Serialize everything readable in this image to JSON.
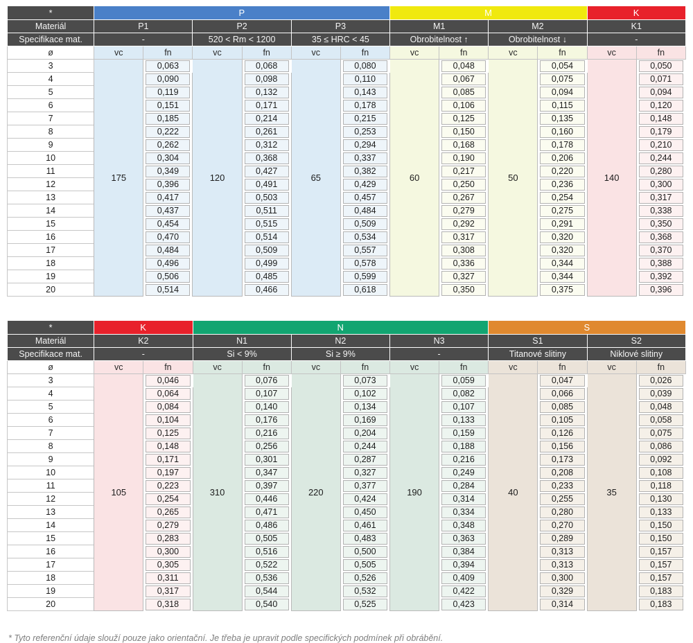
{
  "page": {
    "footnote": "* Tyto referenční údaje slouží pouze jako orientační. Je třeba je upravit podle specifických podmínek při obrábění."
  },
  "labels": {
    "corner": "*",
    "material_row": "Materiál",
    "spec_row": "Specifikace mat.",
    "diameter_symbol": "ø",
    "vc": "vc",
    "fn": "fn"
  },
  "diameters": [
    "3",
    "4",
    "5",
    "6",
    "7",
    "8",
    "9",
    "10",
    "11",
    "12",
    "13",
    "14",
    "15",
    "16",
    "17",
    "18",
    "19",
    "20"
  ],
  "tables": [
    {
      "groups": [
        {
          "label": "P",
          "color": "#4a80c8",
          "span": 3
        },
        {
          "label": "M",
          "color": "#f0e90f",
          "span": 2
        },
        {
          "label": "K",
          "color": "#e8212b",
          "span": 1
        }
      ],
      "columns": [
        {
          "material": "P1",
          "spec": "-",
          "vc": "175",
          "tint": "#dcebf6",
          "tint_light": "#eef5fa",
          "fn": [
            "0,063",
            "0,090",
            "0,119",
            "0,151",
            "0,185",
            "0,222",
            "0,262",
            "0,304",
            "0,349",
            "0,396",
            "0,417",
            "0,437",
            "0,454",
            "0,470",
            "0,484",
            "0,496",
            "0,506",
            "0,514"
          ]
        },
        {
          "material": "P2",
          "spec": "520 < Rm < 1200",
          "vc": "120",
          "tint": "#dcebf6",
          "tint_light": "#eef5fa",
          "fn": [
            "0,068",
            "0,098",
            "0,132",
            "0,171",
            "0,214",
            "0,261",
            "0,312",
            "0,368",
            "0,427",
            "0,491",
            "0,503",
            "0,511",
            "0,515",
            "0,514",
            "0,509",
            "0,499",
            "0,485",
            "0,466"
          ]
        },
        {
          "material": "P3",
          "spec": "35 ≤ HRC < 45",
          "vc": "65",
          "tint": "#dcebf6",
          "tint_light": "#eef5fa",
          "fn": [
            "0,080",
            "0,110",
            "0,143",
            "0,178",
            "0,215",
            "0,253",
            "0,294",
            "0,337",
            "0,382",
            "0,429",
            "0,457",
            "0,484",
            "0,509",
            "0,534",
            "0,557",
            "0,578",
            "0,599",
            "0,618"
          ]
        },
        {
          "material": "M1",
          "spec": "Obrobitelnost ↑",
          "vc": "60",
          "tint": "#f5f8e0",
          "tint_light": "#fbfcf0",
          "fn": [
            "0,048",
            "0,067",
            "0,085",
            "0,106",
            "0,125",
            "0,150",
            "0,168",
            "0,190",
            "0,217",
            "0,250",
            "0,267",
            "0,279",
            "0,292",
            "0,317",
            "0,308",
            "0,336",
            "0,327",
            "0,350"
          ]
        },
        {
          "material": "M2",
          "spec": "Obrobitelnost ↓",
          "vc": "50",
          "tint": "#f5f8e0",
          "tint_light": "#fbfcf0",
          "fn": [
            "0,054",
            "0,075",
            "0,094",
            "0,115",
            "0,135",
            "0,160",
            "0,178",
            "0,206",
            "0,220",
            "0,236",
            "0,254",
            "0,275",
            "0,291",
            "0,320",
            "0,320",
            "0,344",
            "0,344",
            "0,375"
          ]
        },
        {
          "material": "K1",
          "spec": "-",
          "vc": "140",
          "tint": "#fae3e4",
          "tint_light": "#fdf1f1",
          "fn": [
            "0,050",
            "0,071",
            "0,094",
            "0,120",
            "0,148",
            "0,179",
            "0,210",
            "0,244",
            "0,280",
            "0,300",
            "0,317",
            "0,338",
            "0,350",
            "0,368",
            "0,370",
            "0,388",
            "0,392",
            "0,396"
          ]
        }
      ]
    },
    {
      "groups": [
        {
          "label": "K",
          "color": "#e8212b",
          "span": 1
        },
        {
          "label": "N",
          "color": "#12a571",
          "span": 3
        },
        {
          "label": "S",
          "color": "#e0892f",
          "span": 2
        }
      ],
      "columns": [
        {
          "material": "K2",
          "spec": "-",
          "vc": "105",
          "tint": "#fae3e4",
          "tint_light": "#fdf1f1",
          "fn": [
            "0,046",
            "0,064",
            "0,084",
            "0,104",
            "0,125",
            "0,148",
            "0,171",
            "0,197",
            "0,223",
            "0,254",
            "0,265",
            "0,279",
            "0,283",
            "0,300",
            "0,305",
            "0,311",
            "0,317",
            "0,318"
          ]
        },
        {
          "material": "N1",
          "spec": "Si < 9%",
          "vc": "310",
          "tint": "#dbe9e1",
          "tint_light": "#edf5f0",
          "fn": [
            "0,076",
            "0,107",
            "0,140",
            "0,176",
            "0,216",
            "0,256",
            "0,301",
            "0,347",
            "0,397",
            "0,446",
            "0,471",
            "0,486",
            "0,505",
            "0,516",
            "0,522",
            "0,536",
            "0,544",
            "0,540"
          ]
        },
        {
          "material": "N2",
          "spec": "Si ≥ 9%",
          "vc": "220",
          "tint": "#dbe9e1",
          "tint_light": "#edf5f0",
          "fn": [
            "0,073",
            "0,102",
            "0,134",
            "0,169",
            "0,204",
            "0,244",
            "0,287",
            "0,327",
            "0,377",
            "0,424",
            "0,450",
            "0,461",
            "0,483",
            "0,500",
            "0,505",
            "0,526",
            "0,532",
            "0,525"
          ]
        },
        {
          "material": "N3",
          "spec": "-",
          "vc": "190",
          "tint": "#dbe9e1",
          "tint_light": "#edf5f0",
          "fn": [
            "0,059",
            "0,082",
            "0,107",
            "0,133",
            "0,159",
            "0,188",
            "0,216",
            "0,249",
            "0,284",
            "0,314",
            "0,334",
            "0,348",
            "0,363",
            "0,384",
            "0,394",
            "0,409",
            "0,422",
            "0,423"
          ]
        },
        {
          "material": "S1",
          "spec": "Titanové slitiny",
          "vc": "40",
          "tint": "#ebe3d9",
          "tint_light": "#f5f0e8",
          "fn": [
            "0,047",
            "0,066",
            "0,085",
            "0,105",
            "0,126",
            "0,156",
            "0,173",
            "0,208",
            "0,233",
            "0,255",
            "0,280",
            "0,270",
            "0,289",
            "0,313",
            "0,313",
            "0,300",
            "0,329",
            "0,314"
          ]
        },
        {
          "material": "S2",
          "spec": "Niklové slitiny",
          "vc": "35",
          "tint": "#ebe3d9",
          "tint_light": "#f5f0e8",
          "fn": [
            "0,026",
            "0,039",
            "0,048",
            "0,058",
            "0,075",
            "0,086",
            "0,092",
            "0,108",
            "0,118",
            "0,130",
            "0,133",
            "0,150",
            "0,150",
            "0,157",
            "0,157",
            "0,157",
            "0,183",
            "0,183"
          ]
        }
      ]
    }
  ]
}
